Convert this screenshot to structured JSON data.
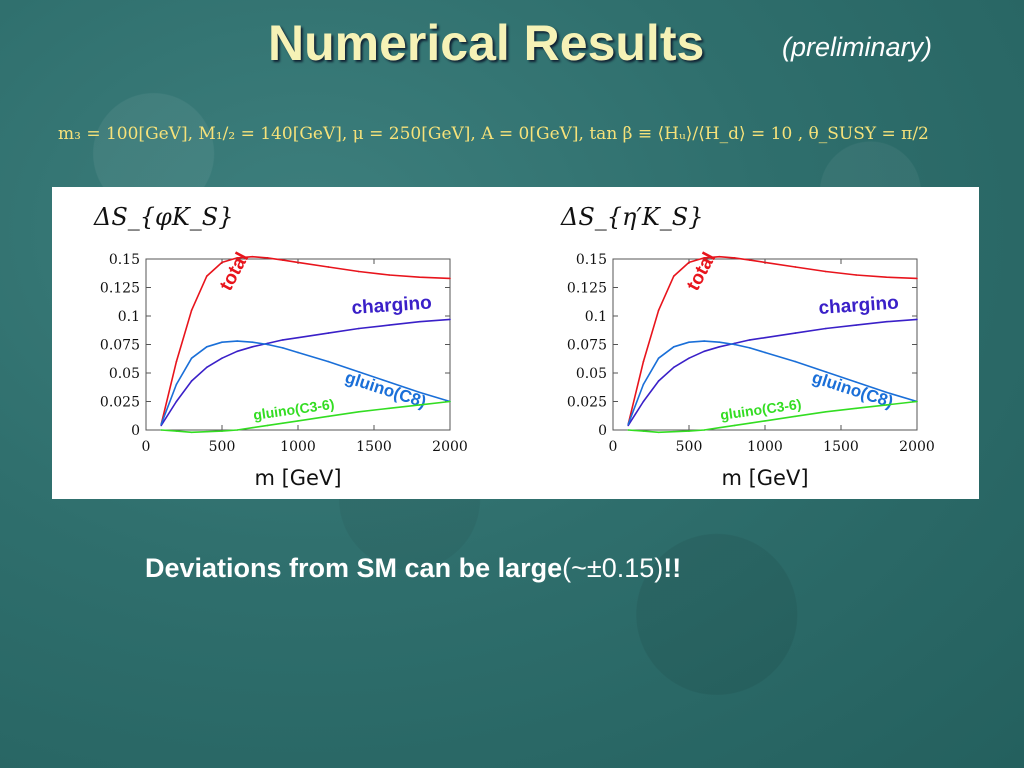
{
  "slide": {
    "title": "Numerical Results",
    "subtitle": "(preliminary)",
    "parameters": "m₃ = 100[GeV], M₁/₂ = 140[GeV], μ = 250[GeV], A = 0[GeV], tan β ≡ ⟨Hᵤ⟩/⟨H_d⟩ = 10 , θ_SUSY = π/2",
    "footnote_bold": "Deviations from SM can be large",
    "footnote_plain": "(~±0.15)",
    "footnote_end": "!!"
  },
  "colors": {
    "title": "#f6f2b6",
    "total": "#e8141c",
    "chargino": "#3a20c8",
    "gluino_c8": "#1a6fd8",
    "gluino_c36": "#33dd22"
  },
  "chart_data": [
    {
      "type": "line",
      "title": "ΔS_{φK_S}",
      "xlabel": "m [GeV]",
      "ylabel": "",
      "xlim": [
        0,
        2000
      ],
      "ylim": [
        0,
        0.15
      ],
      "xticks": [
        "0",
        "500",
        "1000",
        "1500",
        "2000"
      ],
      "yticks": [
        "0",
        "0.025",
        "0.05",
        "0.075",
        "0.1",
        "0.125",
        "0.15"
      ],
      "x": [
        100,
        200,
        300,
        400,
        500,
        600,
        700,
        800,
        900,
        1000,
        1200,
        1400,
        1600,
        1800,
        2000
      ],
      "series": [
        {
          "name": "total",
          "color": "#e8141c",
          "values": [
            0.005,
            0.06,
            0.105,
            0.135,
            0.147,
            0.151,
            0.152,
            0.151,
            0.149,
            0.147,
            0.143,
            0.139,
            0.136,
            0.134,
            0.133
          ]
        },
        {
          "name": "chargino",
          "color": "#3a20c8",
          "values": [
            0.004,
            0.025,
            0.043,
            0.055,
            0.063,
            0.069,
            0.073,
            0.076,
            0.079,
            0.081,
            0.085,
            0.089,
            0.092,
            0.095,
            0.097
          ]
        },
        {
          "name": "gluino(C8)",
          "color": "#1a6fd8",
          "values": [
            0.005,
            0.04,
            0.063,
            0.073,
            0.077,
            0.078,
            0.077,
            0.075,
            0.072,
            0.068,
            0.06,
            0.051,
            0.042,
            0.033,
            0.025
          ]
        },
        {
          "name": "gluino(C3-6)",
          "color": "#33dd22",
          "values": [
            0.0,
            -0.001,
            -0.002,
            -0.0015,
            -0.001,
            0.0,
            0.002,
            0.004,
            0.006,
            0.008,
            0.012,
            0.016,
            0.019,
            0.022,
            0.025
          ]
        }
      ]
    },
    {
      "type": "line",
      "title": "ΔS_{η′K_S}",
      "xlabel": "m [GeV]",
      "ylabel": "",
      "xlim": [
        0,
        2000
      ],
      "ylim": [
        0,
        0.15
      ],
      "xticks": [
        "0",
        "500",
        "1000",
        "1500",
        "2000"
      ],
      "yticks": [
        "0",
        "0.025",
        "0.05",
        "0.075",
        "0.1",
        "0.125",
        "0.15"
      ],
      "x": [
        100,
        200,
        300,
        400,
        500,
        600,
        700,
        800,
        900,
        1000,
        1200,
        1400,
        1600,
        1800,
        2000
      ],
      "series": [
        {
          "name": "total",
          "color": "#e8141c",
          "values": [
            0.005,
            0.06,
            0.105,
            0.135,
            0.147,
            0.151,
            0.152,
            0.151,
            0.149,
            0.147,
            0.143,
            0.139,
            0.136,
            0.134,
            0.133
          ]
        },
        {
          "name": "chargino",
          "color": "#3a20c8",
          "values": [
            0.004,
            0.025,
            0.043,
            0.055,
            0.063,
            0.069,
            0.073,
            0.076,
            0.079,
            0.081,
            0.085,
            0.089,
            0.092,
            0.095,
            0.097
          ]
        },
        {
          "name": "gluino(C8)",
          "color": "#1a6fd8",
          "values": [
            0.005,
            0.04,
            0.063,
            0.073,
            0.077,
            0.078,
            0.077,
            0.075,
            0.072,
            0.068,
            0.06,
            0.051,
            0.042,
            0.033,
            0.025
          ]
        },
        {
          "name": "gluino(C3-6)",
          "color": "#33dd22",
          "values": [
            0.0,
            -0.001,
            -0.002,
            -0.0015,
            -0.001,
            0.0,
            0.002,
            0.004,
            0.006,
            0.008,
            0.012,
            0.016,
            0.019,
            0.022,
            0.025
          ]
        }
      ]
    }
  ]
}
